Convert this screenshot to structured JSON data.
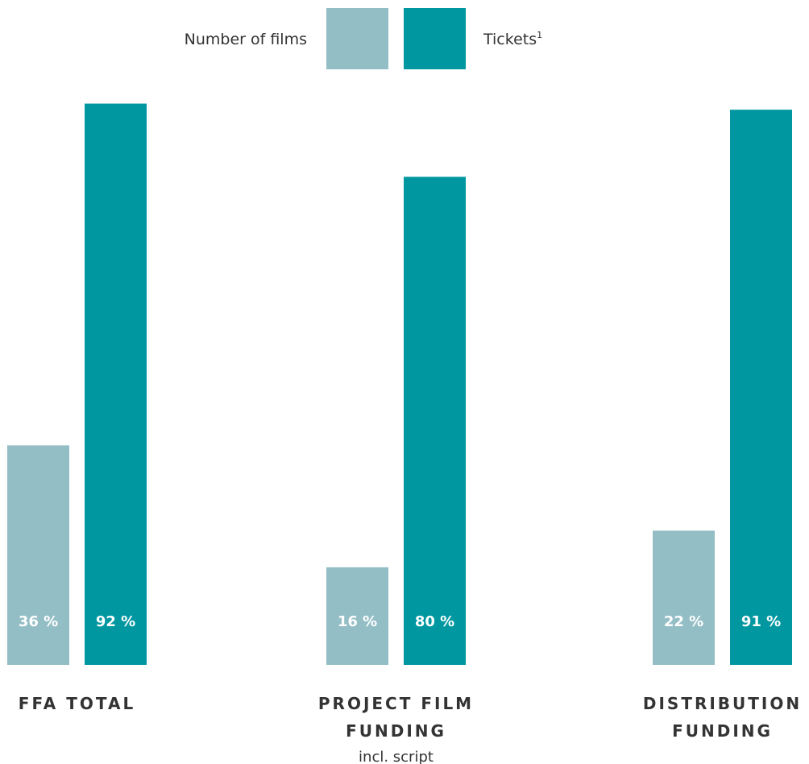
{
  "chart_data": {
    "type": "bar",
    "title": "",
    "ylim": [
      0,
      100
    ],
    "legend_position": "top",
    "categories": [
      {
        "lines": [
          "FFA TOTAL"
        ],
        "sub": ""
      },
      {
        "lines": [
          "PROJECT FILM",
          "FUNDING"
        ],
        "sub": "incl. script"
      },
      {
        "lines": [
          "DISTRIBUTION",
          "FUNDING"
        ],
        "sub": ""
      }
    ],
    "series": [
      {
        "name": "Number of films",
        "color": "#94bec5",
        "values": [
          36,
          16,
          22
        ],
        "labels": [
          "36 %",
          "16 %",
          "22 %"
        ]
      },
      {
        "name": "Tickets",
        "name_superscript": "1",
        "color": "#0097a1",
        "values": [
          92,
          80,
          91
        ],
        "labels": [
          "92 %",
          "80 %",
          "91 %"
        ]
      }
    ]
  }
}
